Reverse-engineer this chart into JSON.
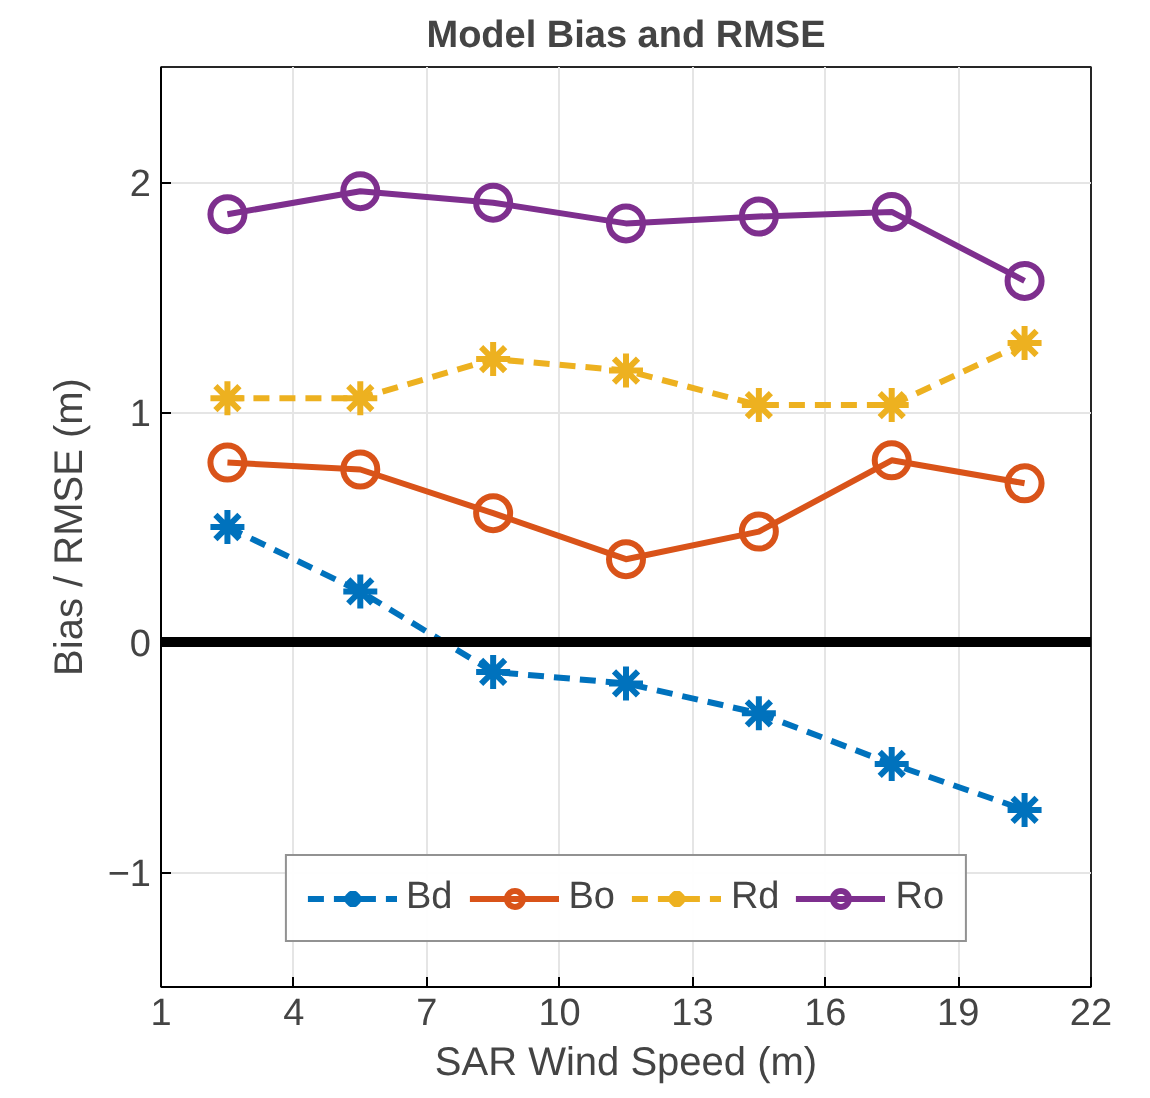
{
  "chart_data": {
    "type": "line",
    "title": "Model Bias and RMSE",
    "xlabel": "SAR Wind Speed (m)",
    "ylabel": "Bias / RMSE (m)",
    "x": [
      2.5,
      5.5,
      8.5,
      11.5,
      14.5,
      17.5,
      20.5
    ],
    "series": [
      {
        "name": "Bd",
        "color": "#0072bd",
        "marker": "cross",
        "line_style": "dashed",
        "values": [
          0.5,
          0.22,
          -0.13,
          -0.18,
          -0.31,
          -0.53,
          -0.73
        ]
      },
      {
        "name": "Bo",
        "color": "#d95319",
        "marker": "circle",
        "line_style": "solid",
        "values": [
          0.78,
          0.75,
          0.56,
          0.36,
          0.48,
          0.79,
          0.69
        ]
      },
      {
        "name": "Rd",
        "color": "#edb120",
        "marker": "cross",
        "line_style": "dashed",
        "values": [
          1.06,
          1.06,
          1.23,
          1.18,
          1.03,
          1.03,
          1.3
        ]
      },
      {
        "name": "Ro",
        "color": "#7e2f8e",
        "marker": "circle",
        "line_style": "solid",
        "values": [
          1.86,
          1.96,
          1.91,
          1.82,
          1.85,
          1.87,
          1.57
        ]
      }
    ],
    "xlim": [
      1,
      22
    ],
    "xticks": [
      1,
      4,
      7,
      10,
      13,
      16,
      19,
      22
    ],
    "ylim": [
      -1.5,
      2.5
    ],
    "yticks": [
      -1,
      0,
      1,
      2
    ],
    "ref_lines": [
      {
        "axis": "y",
        "value": 0,
        "color": "#000000"
      }
    ],
    "grid": true,
    "legend": "bottom"
  }
}
